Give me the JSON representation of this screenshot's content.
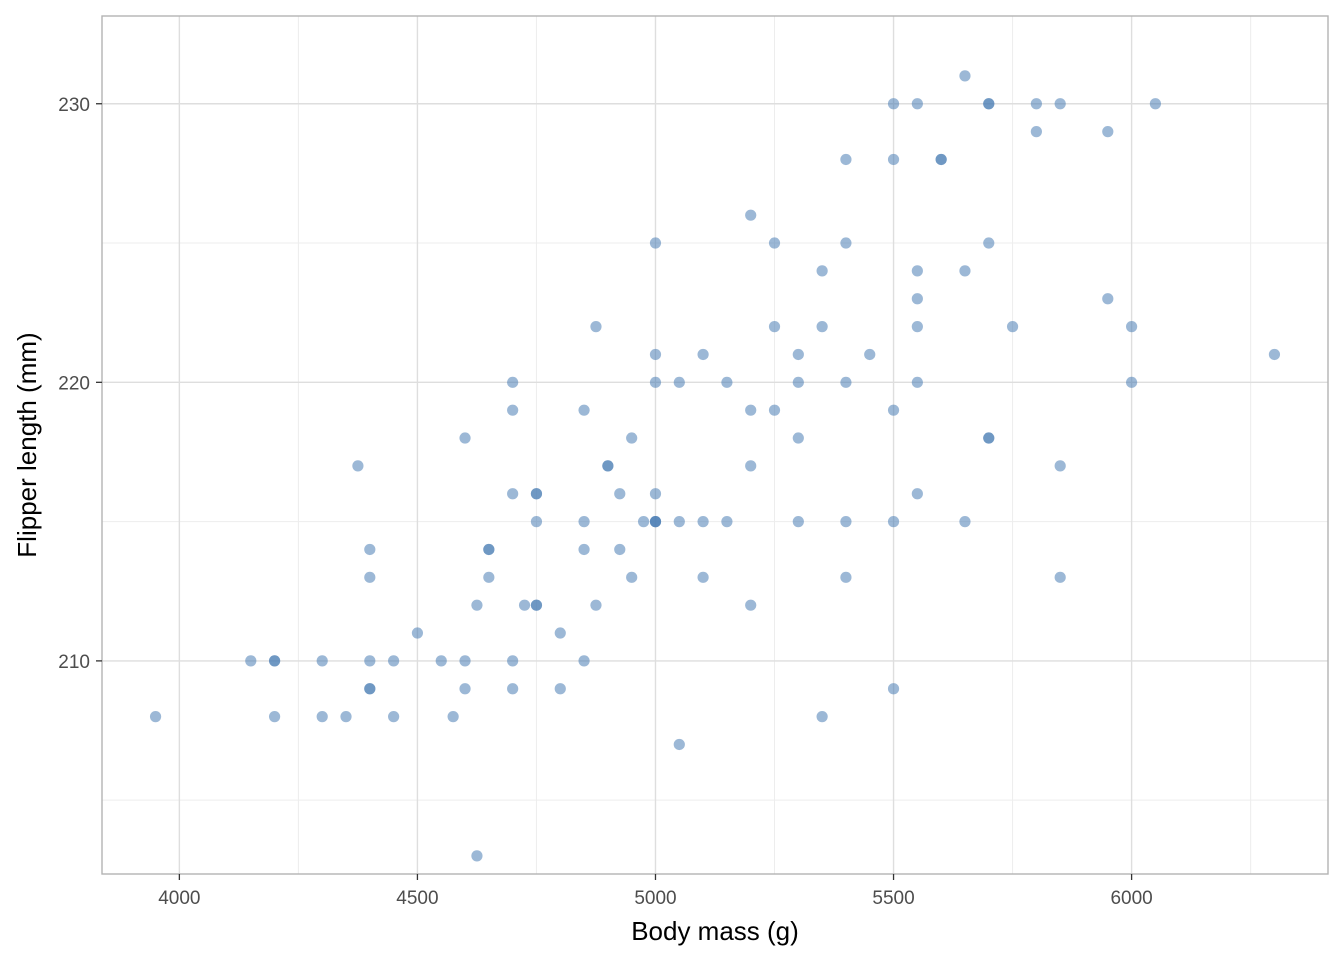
{
  "chart_data": {
    "type": "scatter",
    "title": "",
    "xlabel": "Body mass (g)",
    "ylabel": "Flipper length (mm)",
    "xlim": [
      3837.5,
      6412.5
    ],
    "ylim": [
      202.35,
      233.15
    ],
    "x_ticks": [
      4000,
      4500,
      5000,
      5500,
      6000
    ],
    "y_ticks": [
      210,
      220,
      230
    ],
    "x_tick_labels": [
      "4000",
      "4500",
      "5000",
      "5500",
      "6000"
    ],
    "y_tick_labels": [
      "210",
      "220",
      "230"
    ],
    "grid": true,
    "legend": "none",
    "colors": {
      "point": "#4a7db5",
      "panel_border": "#b3b3b3",
      "grid_major": "#dedede",
      "grid_minor": "#ededed",
      "axis_text": "#4d4d4d",
      "axis_title": "#000000"
    },
    "series": [
      {
        "x": [
          3950,
          4150,
          4200,
          4200,
          4200,
          4300,
          4300,
          4350,
          4375,
          4400,
          4400,
          4400,
          4400,
          4400,
          4450,
          4450,
          4500,
          4550,
          4575,
          4600,
          4600,
          4600,
          4625,
          4625,
          4650,
          4650,
          4650,
          4700,
          4700,
          4700,
          4700,
          4700,
          4725,
          4750,
          4750,
          4750,
          4750,
          4750,
          4800,
          4800,
          4850,
          4850,
          4850,
          4850,
          4875,
          4875,
          4900,
          4900,
          4925,
          4925,
          4950,
          4950,
          4975,
          5000,
          5000,
          5000,
          5000,
          5000,
          5000,
          5000,
          5050,
          5050,
          5050,
          5100,
          5100,
          5100,
          5150,
          5150,
          5200,
          5200,
          5200,
          5200,
          5250,
          5250,
          5250,
          5300,
          5300,
          5300,
          5300,
          5350,
          5350,
          5350,
          5400,
          5400,
          5400,
          5400,
          5400,
          5450,
          5500,
          5500,
          5500,
          5500,
          5500,
          5550,
          5550,
          5550,
          5550,
          5550,
          5550,
          5600,
          5600,
          5650,
          5650,
          5650,
          5700,
          5700,
          5700,
          5700,
          5700,
          5750,
          5800,
          5800,
          5850,
          5850,
          5850,
          5950,
          5950,
          6000,
          6000,
          6050,
          6300
        ],
        "y": [
          208,
          210,
          210,
          210,
          208,
          210,
          208,
          208,
          217,
          214,
          213,
          210,
          209,
          209,
          210,
          208,
          211,
          210,
          208,
          218,
          210,
          209,
          212,
          203,
          214,
          214,
          213,
          220,
          219,
          216,
          210,
          209,
          212,
          216,
          216,
          215,
          212,
          212,
          211,
          209,
          219,
          215,
          214,
          210,
          222,
          212,
          217,
          217,
          216,
          214,
          218,
          213,
          215,
          225,
          221,
          220,
          216,
          215,
          215,
          215,
          220,
          215,
          207,
          221,
          215,
          213,
          220,
          215,
          226,
          219,
          217,
          212,
          225,
          222,
          219,
          221,
          220,
          218,
          215,
          224,
          222,
          208,
          228,
          225,
          220,
          215,
          213,
          221,
          230,
          228,
          219,
          215,
          209,
          230,
          224,
          223,
          222,
          220,
          216,
          228,
          228,
          231,
          224,
          215,
          230,
          230,
          225,
          218,
          218,
          222,
          230,
          229,
          230,
          217,
          213,
          229,
          223,
          222,
          220,
          230,
          221
        ]
      }
    ]
  }
}
